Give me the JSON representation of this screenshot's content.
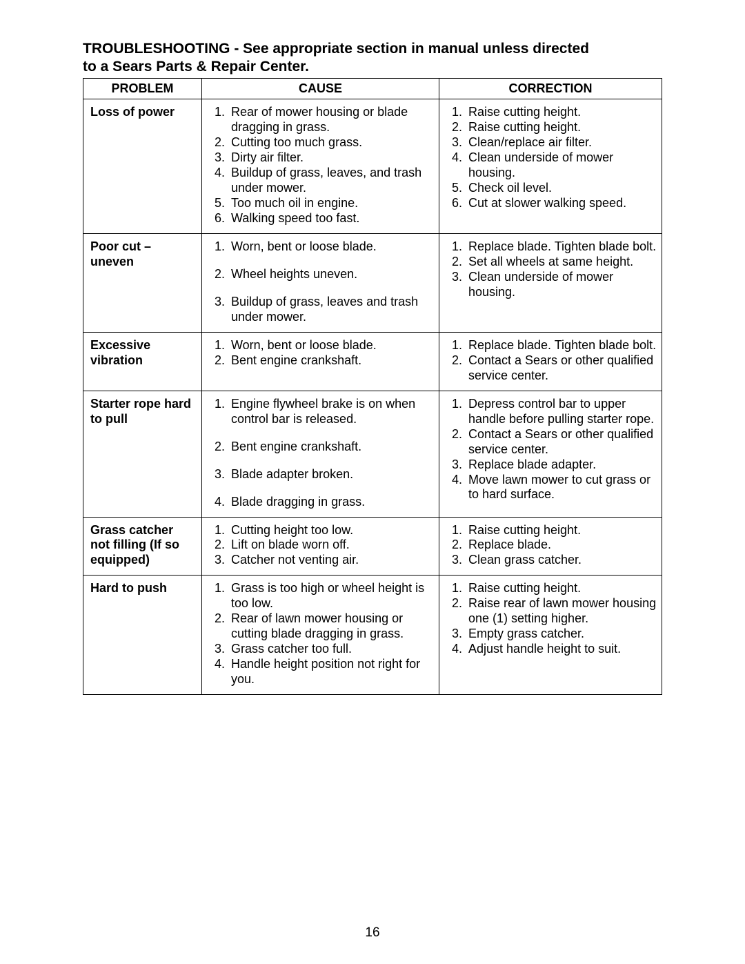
{
  "heading_line1": "TROUBLESHOOTING - See appropriate section in manual unless directed",
  "heading_line2": "to a Sears Parts & Repair Center.",
  "page_number": "16",
  "columns": {
    "problem": "PROBLEM",
    "cause": "CAUSE",
    "correction": "CORRECTION"
  },
  "rows": [
    {
      "problem": "Loss of power",
      "causes": [
        "Rear of mower housing or blade dragging in grass.",
        "Cutting too much grass.",
        "Dirty air filter.",
        "Buildup of grass, leaves, and trash under mower.",
        "Too much oil in engine.",
        "Walking speed too fast."
      ],
      "corrections": [
        "Raise cutting height.",
        "Raise cutting height.",
        "Clean/replace air filter.",
        "Clean underside of mower housing.",
        "Check oil level.",
        "Cut at slower walking speed."
      ]
    },
    {
      "problem": "Poor cut – uneven",
      "causes": [
        "Worn, bent or loose blade.",
        "Wheel heights uneven.",
        "Buildup of grass, leaves and trash under mower."
      ],
      "corrections": [
        "Replace blade. Tighten blade bolt.",
        "Set all wheels at same height.",
        "Clean underside of mower housing."
      ]
    },
    {
      "problem": "Excessive vibration",
      "causes": [
        "Worn, bent or loose blade.",
        "Bent engine crankshaft."
      ],
      "corrections": [
        "Replace blade. Tighten blade bolt.",
        "Contact a Sears or other qualified service center."
      ]
    },
    {
      "problem": "Starter rope hard to pull",
      "causes": [
        "Engine flywheel brake is on when control bar is released.",
        "Bent engine crankshaft.",
        "Blade adapter broken.",
        "Blade dragging in grass."
      ],
      "corrections": [
        "Depress control bar to upper handle before pulling starter rope.",
        "Contact a Sears or other qualified service center.",
        "Replace blade adapter.",
        "Move lawn mower to cut grass or to hard surface."
      ]
    },
    {
      "problem": "Grass catcher not filling (If so equipped)",
      "causes": [
        "Cutting height too low.",
        "Lift on blade worn off.",
        "Catcher not venting air."
      ],
      "corrections": [
        "Raise cutting height.",
        "Replace blade.",
        "Clean grass catcher."
      ]
    },
    {
      "problem": "Hard to push",
      "causes": [
        "Grass is too high or wheel height is too low.",
        "Rear of lawn mower housing or cutting blade dragging in grass.",
        "Grass catcher too full.",
        "Handle height position not right for you."
      ],
      "corrections": [
        "Raise cutting height.",
        "Raise rear of lawn mower housing one (1) setting higher.",
        "Empty grass catcher.",
        "Adjust handle height to suit."
      ]
    }
  ],
  "row_style": {
    "1": {
      "cause_li_margin_bottom": "18px",
      "correction_li_margin_bottom": "0px"
    },
    "3": {
      "cause_li_margin_bottom": "18px",
      "correction_li_margin_bottom": "0px"
    }
  }
}
